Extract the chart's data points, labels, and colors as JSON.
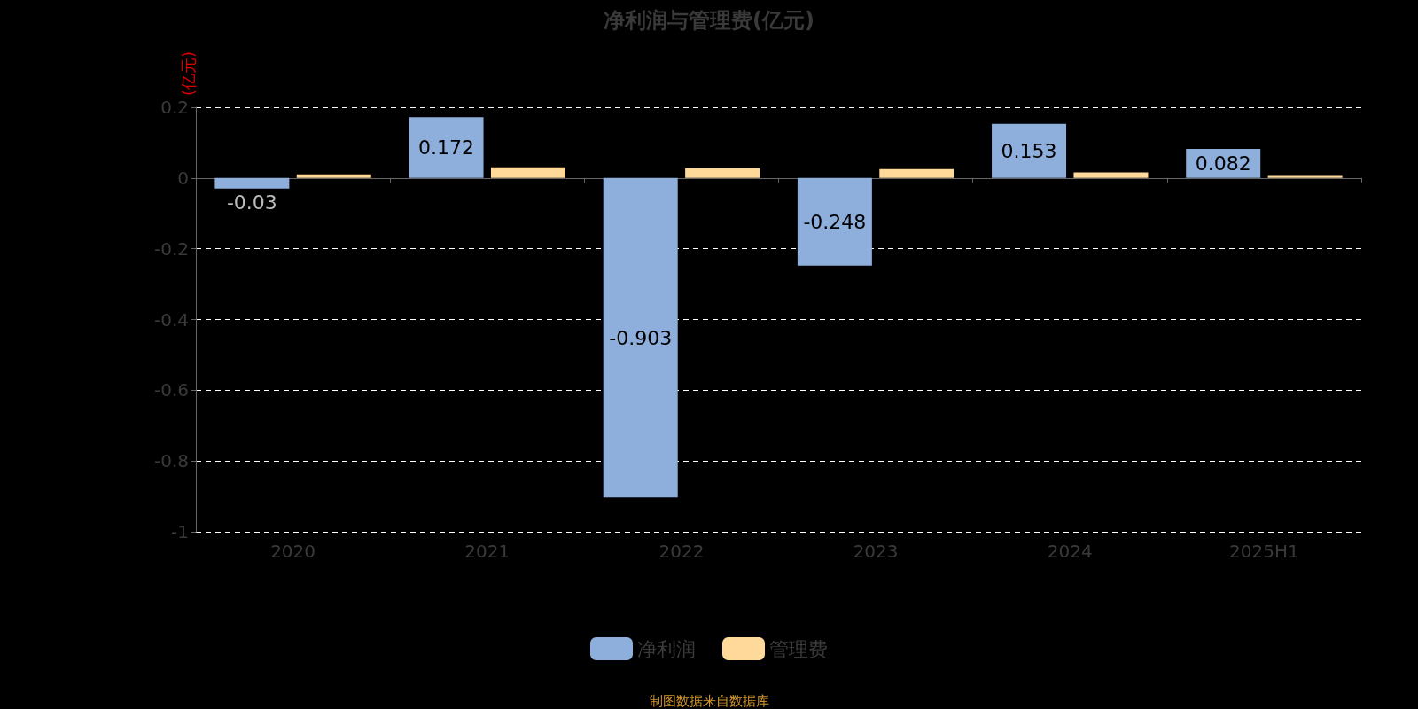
{
  "chart_data": {
    "type": "bar",
    "title": "净利润与管理费(亿元)",
    "ylabel": "(亿元)",
    "categories": [
      "2020",
      "2021",
      "2022",
      "2023",
      "2024",
      "2025H1"
    ],
    "series": [
      {
        "name": "净利润",
        "color": "#8eaedc",
        "values": [
          -0.03,
          0.172,
          -0.903,
          -0.248,
          0.153,
          0.082
        ],
        "value_labels": [
          "-0.03",
          "0.172",
          "-0.903",
          "-0.248",
          "0.153",
          "0.082"
        ]
      },
      {
        "name": "管理费",
        "color": "#ffd99a",
        "values": [
          0.01,
          0.03,
          0.028,
          0.025,
          0.016,
          0.006
        ]
      }
    ],
    "ylim": [
      -1,
      0.2
    ],
    "yticks": [
      -1,
      -0.8,
      -0.6,
      -0.4,
      -0.2,
      0,
      0.2
    ],
    "grid": "y",
    "legend": "bottom",
    "annotations": [
      "制图数据来自数据库"
    ]
  }
}
